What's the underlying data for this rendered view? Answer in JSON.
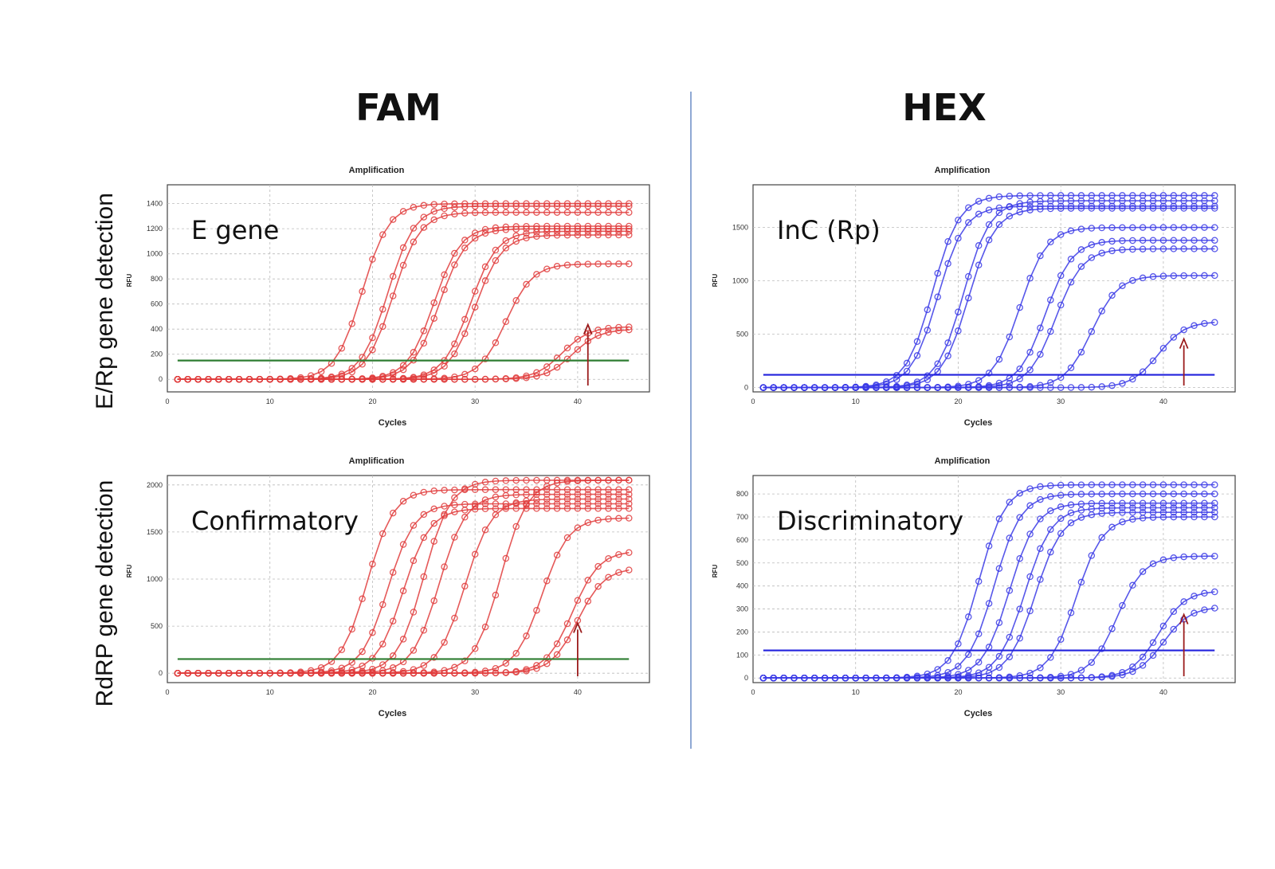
{
  "headers": {
    "left": "FAM",
    "right": "HEX"
  },
  "row_labels": {
    "top": "E/Rp gene detection",
    "bottom": "RdRP gene detection"
  },
  "chart_data": [
    {
      "type": "line",
      "title": "Amplification",
      "annotation": "E gene",
      "xlabel": "Cycles",
      "ylabel": "RFU",
      "xlim": [
        0,
        47
      ],
      "ylim": [
        -100,
        1550
      ],
      "xticks": [
        0,
        10,
        20,
        30,
        40
      ],
      "yticks": [
        0,
        200,
        400,
        600,
        800,
        1000,
        1200,
        1400
      ],
      "threshold": 150,
      "arrow_cycle": 41,
      "color": "#e03c3c",
      "threshold_color": "#2e7d32",
      "series": [
        {
          "ct": 19.0,
          "plateau": 1400
        },
        {
          "ct": 21.5,
          "plateau": 1380
        },
        {
          "ct": 22.0,
          "plateau": 1330
        },
        {
          "ct": 26.0,
          "plateau": 1220
        },
        {
          "ct": 26.5,
          "plateau": 1200
        },
        {
          "ct": 29.5,
          "plateau": 1180
        },
        {
          "ct": 30.0,
          "plateau": 1150
        },
        {
          "ct": 33.0,
          "plateau": 920
        },
        {
          "ct": 38.5,
          "plateau": 420
        },
        {
          "ct": 39.5,
          "plateau": 400
        }
      ]
    },
    {
      "type": "line",
      "title": "Amplification",
      "annotation": "Confirmatory",
      "xlabel": "Cycles",
      "ylabel": "RFU",
      "xlim": [
        0,
        47
      ],
      "ylim": [
        -100,
        2100
      ],
      "xticks": [
        0,
        10,
        20,
        30,
        40
      ],
      "yticks": [
        0,
        500,
        1000,
        1500,
        2000
      ],
      "threshold": 150,
      "arrow_cycle": 40,
      "color": "#e03c3c",
      "threshold_color": "#2e7d32",
      "series": [
        {
          "ct": 19.5,
          "plateau": 1950
        },
        {
          "ct": 21.5,
          "plateau": 1800
        },
        {
          "ct": 23.0,
          "plateau": 1750
        },
        {
          "ct": 25.0,
          "plateau": 2050
        },
        {
          "ct": 26.5,
          "plateau": 1900
        },
        {
          "ct": 29.0,
          "plateau": 1850
        },
        {
          "ct": 32.5,
          "plateau": 2050
        },
        {
          "ct": 36.5,
          "plateau": 1650
        },
        {
          "ct": 39.5,
          "plateau": 1300
        },
        {
          "ct": 40.0,
          "plateau": 1120
        }
      ]
    },
    {
      "type": "line",
      "title": "Amplification",
      "annotation": "InC (Rp)",
      "xlabel": "Cycles",
      "ylabel": "RFU",
      "xlim": [
        0,
        47
      ],
      "ylim": [
        -40,
        1900
      ],
      "xticks": [
        0,
        10,
        20,
        30,
        40
      ],
      "yticks": [
        0,
        500,
        1000,
        1500
      ],
      "threshold": 120,
      "arrow_cycle": 42,
      "color": "#3a3ae6",
      "threshold_color": "#2222dd",
      "series": [
        {
          "ct": 17.5,
          "plateau": 1800
        },
        {
          "ct": 18.0,
          "plateau": 1700
        },
        {
          "ct": 20.5,
          "plateau": 1750
        },
        {
          "ct": 21.0,
          "plateau": 1680
        },
        {
          "ct": 26.0,
          "plateau": 1500
        },
        {
          "ct": 28.5,
          "plateau": 1380
        },
        {
          "ct": 29.5,
          "plateau": 1300
        },
        {
          "ct": 33.0,
          "plateau": 1050
        },
        {
          "ct": 39.5,
          "plateau": 620
        }
      ]
    },
    {
      "type": "line",
      "title": "Amplification",
      "annotation": "Discriminatory",
      "xlabel": "Cycles",
      "ylabel": "RFU",
      "xlim": [
        0,
        47
      ],
      "ylim": [
        -20,
        880
      ],
      "xticks": [
        0,
        10,
        20,
        30,
        40
      ],
      "yticks": [
        0,
        100,
        200,
        300,
        400,
        500,
        600,
        700,
        800
      ],
      "threshold": 120,
      "arrow_cycle": 42,
      "color": "#3a3ae6",
      "threshold_color": "#2222dd",
      "series": [
        {
          "ct": 22.0,
          "plateau": 840
        },
        {
          "ct": 23.5,
          "plateau": 800
        },
        {
          "ct": 25.0,
          "plateau": 760
        },
        {
          "ct": 26.5,
          "plateau": 740
        },
        {
          "ct": 27.5,
          "plateau": 720
        },
        {
          "ct": 31.5,
          "plateau": 700
        },
        {
          "ct": 35.5,
          "plateau": 530
        },
        {
          "ct": 39.5,
          "plateau": 380
        },
        {
          "ct": 40.0,
          "plateau": 310
        }
      ]
    }
  ]
}
